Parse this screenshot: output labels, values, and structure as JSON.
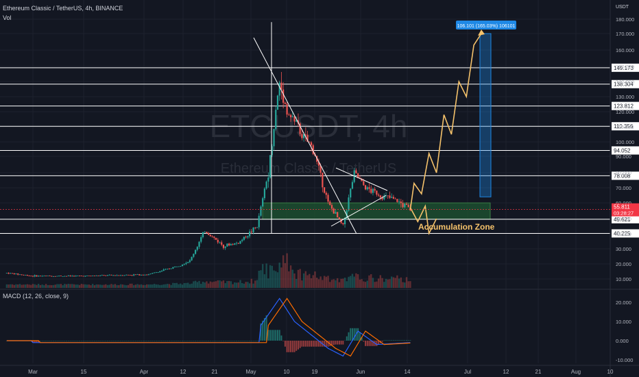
{
  "header": {
    "symbol_line": "Ethereum Classic / TetherUS, 4h, BINANCE",
    "vol_label": "Vol",
    "macd_label": "MACD (12, 26, close, 9)"
  },
  "watermark": {
    "line1": "ETCUSDT, 4h",
    "line2": "Ethereum Classic / TetherUS"
  },
  "price_axis": {
    "currency": "USDT",
    "ticks": [
      "180.000",
      "170.000",
      "160.000",
      "150.000",
      "140.000",
      "130.000",
      "120.000",
      "110.000",
      "100.000",
      "90.000",
      "80.000",
      "70.000",
      "60.000",
      "50.000",
      "40.000",
      "30.000",
      "20.000",
      "10.000"
    ]
  },
  "macd_axis": {
    "ticks": [
      "20.000",
      "10.000",
      "0.000",
      "-10.000"
    ]
  },
  "time_axis": {
    "ticks": [
      "Mar",
      "15",
      "Apr",
      "12",
      "21",
      "May",
      "10",
      "19",
      "Jun",
      "14",
      "Jul",
      "12",
      "21",
      "Aug",
      "10"
    ]
  },
  "levels": [
    {
      "value": 149.173,
      "label": "149.173"
    },
    {
      "value": 138.304,
      "label": "138.304"
    },
    {
      "value": 123.812,
      "label": "123.812"
    },
    {
      "value": 110.356,
      "label": "110.356"
    },
    {
      "value": 94.052,
      "label": "94.052"
    },
    {
      "value": 78.008,
      "label": "78.008"
    },
    {
      "value": 49.621,
      "label": "49.621"
    },
    {
      "value": 40.225,
      "label": "40.225"
    }
  ],
  "current_price": {
    "value": 55.811,
    "label": "55.811",
    "countdown": "03:28:27",
    "color": "#f23645"
  },
  "target_label": "106.101 (165.03%) 106101",
  "zone_label": "Accumulation Zone",
  "colors": {
    "background": "#131722",
    "up": "#26a69a",
    "down": "#ef5350",
    "projection": "#f5c26b",
    "zone_fill": "#1e5631",
    "target_box": "#1e88e5",
    "macd_line": "#2962ff",
    "signal_line": "#ff6d00"
  },
  "chart_data": {
    "type": "candlestick",
    "symbol": "ETCUSDT",
    "timeframe": "4h",
    "exchange": "BINANCE",
    "approx_close_path": [
      {
        "date": "Feb 22",
        "price": 14
      },
      {
        "date": "Mar 01",
        "price": 12
      },
      {
        "date": "Mar 15",
        "price": 12
      },
      {
        "date": "Apr 01",
        "price": 13
      },
      {
        "date": "Apr 08",
        "price": 18
      },
      {
        "date": "Apr 12",
        "price": 22
      },
      {
        "date": "Apr 16",
        "price": 42
      },
      {
        "date": "Apr 21",
        "price": 32
      },
      {
        "date": "Apr 25",
        "price": 34
      },
      {
        "date": "Apr 30",
        "price": 45
      },
      {
        "date": "May 03",
        "price": 80
      },
      {
        "date": "May 06",
        "price": 140
      },
      {
        "date": "May 08",
        "price": 120
      },
      {
        "date": "May 12",
        "price": 105
      },
      {
        "date": "May 15",
        "price": 95
      },
      {
        "date": "May 19",
        "price": 60
      },
      {
        "date": "May 23",
        "price": 45
      },
      {
        "date": "May 26",
        "price": 80
      },
      {
        "date": "May 29",
        "price": 70
      },
      {
        "date": "Jun 02",
        "price": 65
      },
      {
        "date": "Jun 06",
        "price": 62
      },
      {
        "date": "Jun 10",
        "price": 55.811
      }
    ],
    "projection_path": [
      {
        "date": "Jun 10",
        "price": 55.811
      },
      {
        "date": "Jun 11",
        "price": 73
      },
      {
        "date": "Jun 13",
        "price": 66
      },
      {
        "date": "Jun 15",
        "price": 92
      },
      {
        "date": "Jun 17",
        "price": 80
      },
      {
        "date": "Jun 19",
        "price": 118
      },
      {
        "date": "Jun 21",
        "price": 105
      },
      {
        "date": "Jun 23",
        "price": 140
      },
      {
        "date": "Jun 25",
        "price": 130
      },
      {
        "date": "Jun 27",
        "price": 163
      },
      {
        "date": "Jun 29",
        "price": 170
      }
    ],
    "alt_path": [
      {
        "date": "Jun 10",
        "price": 57
      },
      {
        "date": "Jun 12",
        "price": 48
      },
      {
        "date": "Jun 14",
        "price": 58
      },
      {
        "date": "Jun 15",
        "price": 40.225
      },
      {
        "date": "Jun 17",
        "price": 50
      }
    ],
    "accumulation_zone": [
      49.621,
      60
    ],
    "target_range": [
      64,
      170
    ],
    "macd": {
      "fast": 12,
      "slow": 26,
      "signal": 9,
      "approx_path": [
        {
          "date": "Mar 01",
          "value": 0
        },
        {
          "date": "Apr 15",
          "value": 1
        },
        {
          "date": "Apr 20",
          "value": 2
        },
        {
          "date": "May 01",
          "value": 8
        },
        {
          "date": "May 06",
          "value": 22
        },
        {
          "date": "May 10",
          "value": 10
        },
        {
          "date": "May 19",
          "value": -4
        },
        {
          "date": "May 23",
          "value": -8
        },
        {
          "date": "May 27",
          "value": 5
        },
        {
          "date": "Jun 01",
          "value": -2
        },
        {
          "date": "Jun 10",
          "value": -1
        }
      ],
      "ylim": [
        -12,
        25
      ]
    },
    "ylim": [
      0,
      195
    ],
    "scale": "log"
  }
}
